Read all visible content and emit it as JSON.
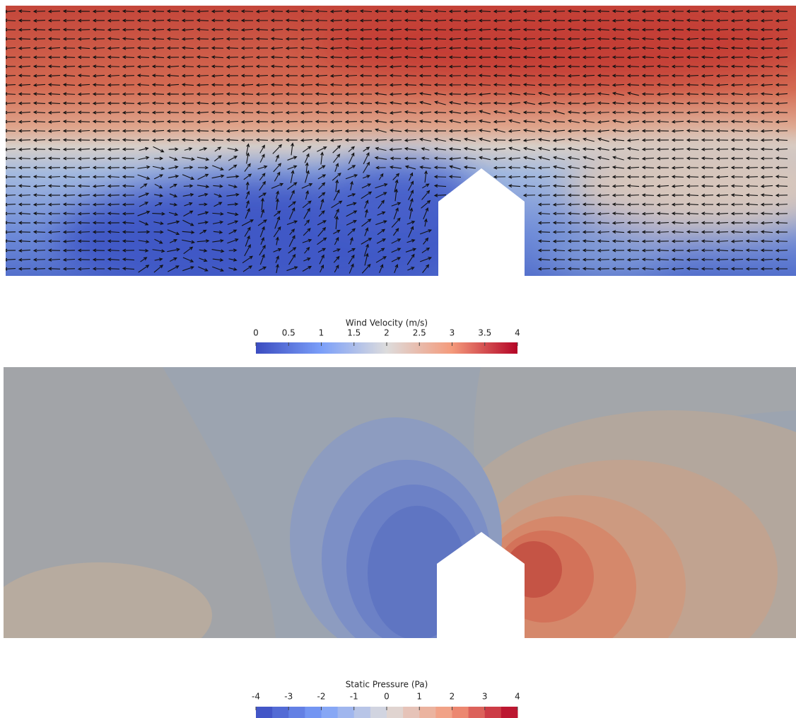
{
  "velocity_colorbar": {
    "title": "Wind Velocity (m/s)",
    "lim": [
      0,
      4
    ],
    "ticks": [
      0,
      0.5,
      1,
      1.5,
      2,
      2.5,
      3,
      3.5,
      4
    ]
  },
  "pressure_colorbar": {
    "title": "Static Pressure (Pa)",
    "lim": [
      -4,
      4
    ],
    "ticks": [
      -4,
      -3,
      -2,
      -1,
      0,
      1,
      2,
      3,
      4
    ]
  }
}
